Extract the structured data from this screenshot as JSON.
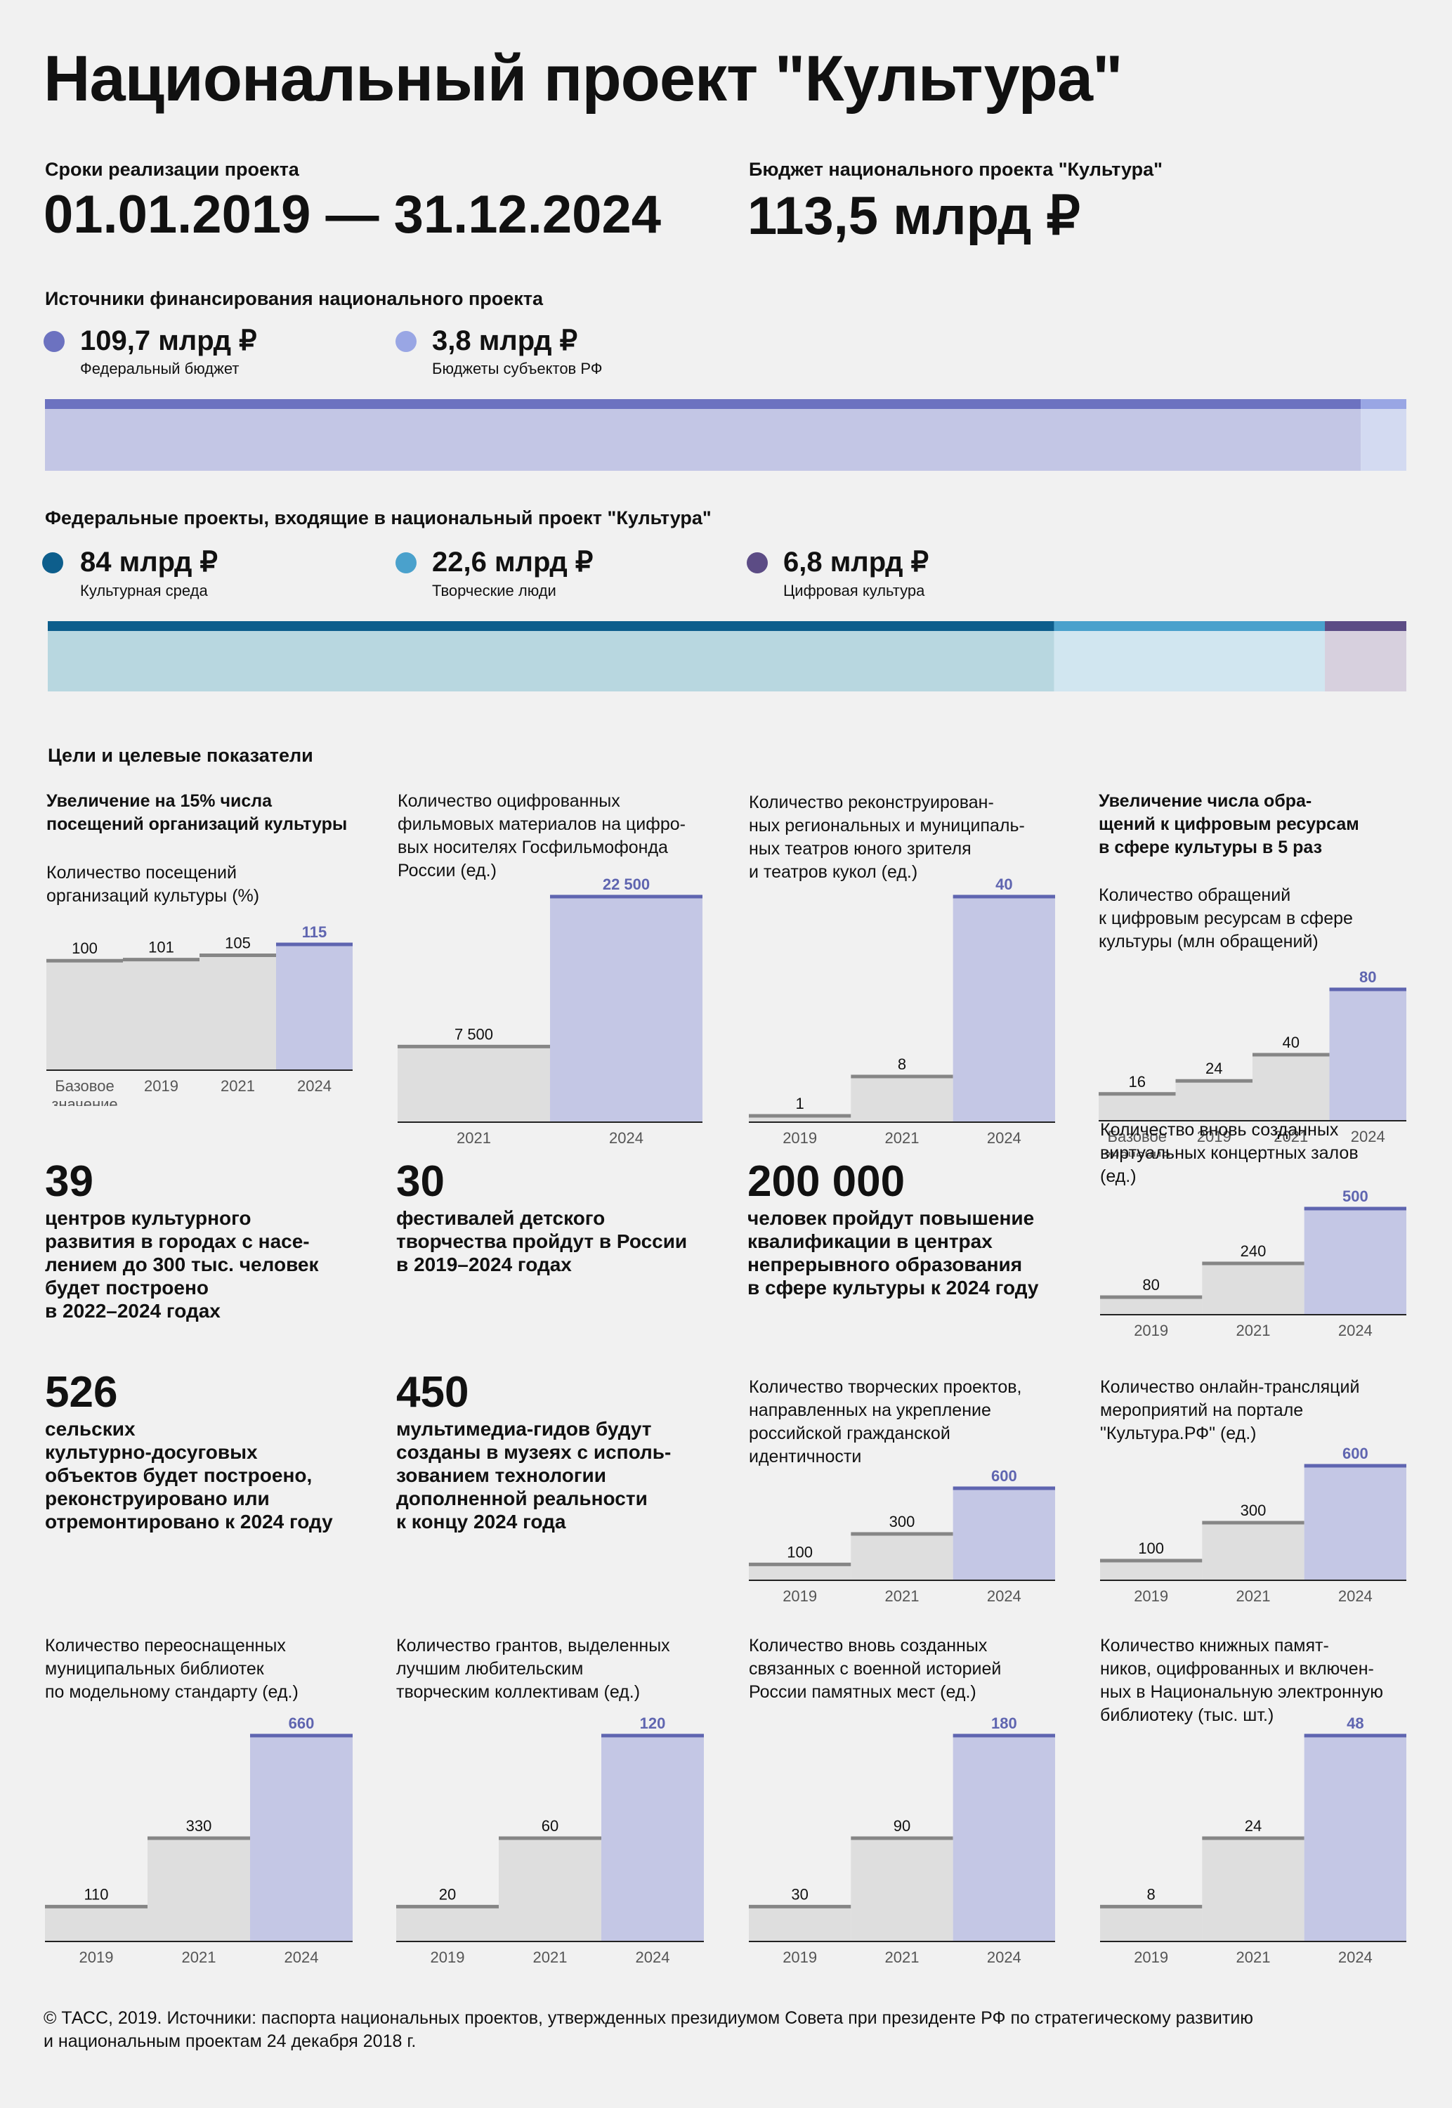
{
  "title": "Национальный проект \"Культура\"",
  "period": {
    "label": "Сроки реализации проекта",
    "value": "01.01.2019 — 31.12.2024"
  },
  "budget": {
    "label": "Бюджет национального проекта \"Культура\"",
    "value": "113,5 млрд ₽"
  },
  "financing": {
    "label": "Источники финансирования национального проекта",
    "items": [
      {
        "amount": "109,7 млрд ₽",
        "name": "Федеральный бюджет",
        "value": 109.7,
        "color": "#6c72c0",
        "light": "#c3c6e5"
      },
      {
        "amount": "3,8 млрд ₽",
        "name": "Бюджеты субъектов РФ",
        "value": 3.8,
        "color": "#99a6e4",
        "light": "#d3daf1"
      }
    ]
  },
  "federal": {
    "label": "Федеральные проекты, входящие в национальный проект \"Культура\"",
    "items": [
      {
        "amount": "84 млрд ₽",
        "name": "Культурная среда",
        "value": 84,
        "color": "#0d5e8c",
        "light": "#b8d7e0"
      },
      {
        "amount": "22,6 млрд ₽",
        "name": "Творческие люди",
        "value": 22.6,
        "color": "#4aa1cc",
        "light": "#d1e6f0"
      },
      {
        "amount": "6,8 млрд ₽",
        "name": "Цифровая культура",
        "value": 6.8,
        "color": "#5c4c85",
        "light": "#d7d0de"
      }
    ]
  },
  "goals_label": "Цели и целевые показатели",
  "colors": {
    "base_fill": "#dedede",
    "base_line": "#868686",
    "hl_fill": "#c4c7e5",
    "hl_line": "#5f65b0",
    "hl_text": "#5f65b0"
  },
  "chart_data": [
    {
      "type": "bar",
      "goal": "Увеличение на 15% числа\nпосещений организаций культуры",
      "title": "Количество посещений\nорганизаций культуры (%)",
      "categories": [
        "Базовое\nзначение",
        "2019",
        "2021",
        "2024"
      ],
      "values": [
        100,
        101,
        105,
        115
      ],
      "labels": [
        "100",
        "101",
        "105",
        "115"
      ]
    },
    {
      "type": "bar",
      "title": "Количество оцифрованных\nфильмовых материалов на цифро-\nвых носителях Госфильмофонда\nРоссии (ед.)",
      "categories": [
        "2021",
        "2024"
      ],
      "values": [
        7500,
        22500
      ],
      "labels": [
        "7 500",
        "22 500"
      ]
    },
    {
      "type": "bar",
      "title": "Количество реконструирован-\nных региональных и муниципаль-\nных театров юного зрителя\nи театров кукол (ед.)",
      "categories": [
        "2019",
        "2021",
        "2024"
      ],
      "values": [
        1,
        8,
        40
      ],
      "labels": [
        "1",
        "8",
        "40"
      ]
    },
    {
      "type": "bar",
      "goal": "Увеличение числа обра-\nщений к цифровым ресурсам\nв сфере культуры в 5 раз",
      "title": "Количество обращений\nк цифровым ресурсам в сфере\nкультуры (млн обращений)",
      "categories": [
        "Базовое\nзначение",
        "2019",
        "2021",
        "2024"
      ],
      "values": [
        16,
        24,
        40,
        80
      ],
      "labels": [
        "16",
        "24",
        "40",
        "80"
      ]
    },
    {
      "type": "bar",
      "title": "Количество вновь созданных\nвиртуальных концертных залов\n(ед.)",
      "categories": [
        "2019",
        "2021",
        "2024"
      ],
      "values": [
        80,
        240,
        500
      ],
      "labels": [
        "80",
        "240",
        "500"
      ]
    },
    {
      "type": "bar",
      "title": "Количество творческих проектов,\nнаправленных на укрепление\nроссийской гражданской\nидентичности",
      "categories": [
        "2019",
        "2021",
        "2024"
      ],
      "values": [
        100,
        300,
        600
      ],
      "labels": [
        "100",
        "300",
        "600"
      ]
    },
    {
      "type": "bar",
      "title": "Количество онлайн-трансляций\nмероприятий на портале\n\"Культура.РФ\" (ед.)",
      "categories": [
        "2019",
        "2021",
        "2024"
      ],
      "values": [
        100,
        300,
        600
      ],
      "labels": [
        "100",
        "300",
        "600"
      ]
    },
    {
      "type": "bar",
      "title": "Количество переоснащенных\nмуниципальных библиотек\nпо модельному стандарту (ед.)",
      "categories": [
        "2019",
        "2021",
        "2024"
      ],
      "values": [
        110,
        330,
        660
      ],
      "labels": [
        "110",
        "330",
        "660"
      ]
    },
    {
      "type": "bar",
      "title": "Количество грантов, выделенных\nлучшим любительским\nтворческим коллективам (ед.)",
      "categories": [
        "2019",
        "2021",
        "2024"
      ],
      "values": [
        20,
        60,
        120
      ],
      "labels": [
        "20",
        "60",
        "120"
      ]
    },
    {
      "type": "bar",
      "title": "Количество вновь созданных\nсвязанных с военной историей\nРоссии памятных мест (ед.)",
      "categories": [
        "2019",
        "2021",
        "2024"
      ],
      "values": [
        30,
        90,
        180
      ],
      "labels": [
        "30",
        "90",
        "180"
      ]
    },
    {
      "type": "bar",
      "title": "Количество книжных памят-\nников, оцифрованных и включен-\nных в Национальную электронную\nбиблиотеку (тыс. шт.)",
      "categories": [
        "2019",
        "2021",
        "2024"
      ],
      "values": [
        8,
        24,
        48
      ],
      "labels": [
        "8",
        "24",
        "48"
      ]
    }
  ],
  "facts": [
    {
      "number": "39",
      "text": "центров культурного\nразвития в городах с насе-\nлением до 300 тыс. человек\nбудет построено\nв 2022–2024 годах"
    },
    {
      "number": "30",
      "text": "фестивалей детского\nтворчества пройдут в России\nв 2019–2024 годах"
    },
    {
      "number": "200 000",
      "text": "человек пройдут повышение\nквалификации в центрах\nнепрерывного образования\nв сфере культуры к 2024 году"
    },
    {
      "number": "526",
      "text": "сельских\nкультурно-досуговых\nобъектов будет построено,\nреконструировано или\nотремонтировано к 2024 году"
    },
    {
      "number": "450",
      "text": "мультимедиа-гидов будут\nсозданы в музеях с исполь-\nзованием технологии\nдополненной реальности\nк концу 2024 года"
    }
  ],
  "footer": "© ТАСС, 2019. Источники: паспорта национальных проектов, утвержденных президиумом Совета при президенте РФ по стратегическому развитию\nи национальным проектам 24 декабря 2018 г."
}
